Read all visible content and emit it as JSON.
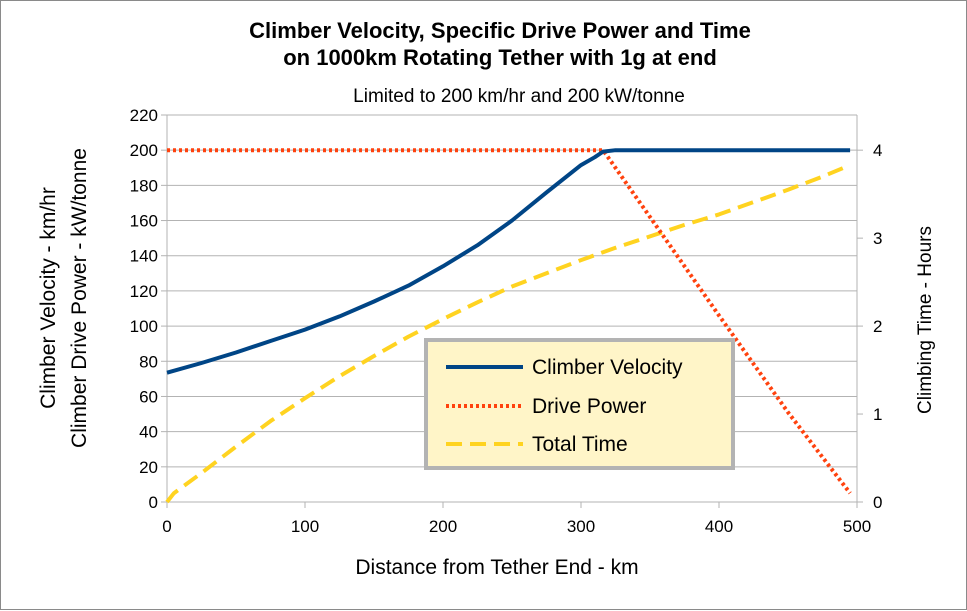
{
  "chart_data": {
    "type": "line",
    "title": [
      "Climber Velocity, Specific Drive Power and Time",
      "on 1000km Rotating Tether with 1g at end"
    ],
    "subtitle": "Limited to 200 km/hr and 200 kW/tonne",
    "xlabel": "Distance from Tether End - km",
    "ylabel": [
      "Climber Velocity - km/hr",
      "Climber Drive Power - kW/tonne"
    ],
    "y2label": "Climbing Time - Hours",
    "xlim": [
      0,
      500
    ],
    "ylim": [
      0,
      220
    ],
    "y2lim": [
      0,
      4.4
    ],
    "x_ticks": [
      "0",
      "100",
      "200",
      "300",
      "400",
      "500"
    ],
    "y_ticks": [
      "0",
      "20",
      "40",
      "60",
      "80",
      "100",
      "120",
      "140",
      "160",
      "180",
      "200",
      "220"
    ],
    "y2_ticks": [
      "0",
      "1",
      "2",
      "3",
      "4"
    ],
    "grid": "horizontal major gridlines",
    "legend_position": "center-right inside plot",
    "series": [
      {
        "name": "Climber Velocity",
        "axis": "left",
        "color": "#004586",
        "style": "solid",
        "x": [
          0,
          25,
          50,
          75,
          100,
          125,
          150,
          175,
          200,
          225,
          250,
          275,
          300,
          310,
          316,
          325,
          350,
          400,
          450,
          495
        ],
        "y": [
          73.5,
          79,
          85,
          91.5,
          98,
          105.5,
          114,
          123,
          134,
          146,
          160,
          176,
          191.5,
          196,
          199.2,
          200,
          200,
          200,
          200,
          200
        ]
      },
      {
        "name": "Drive Power",
        "axis": "left",
        "color": "#ff420e",
        "style": "dotted",
        "x": [
          0,
          50,
          100,
          150,
          200,
          250,
          300,
          316,
          350,
          400,
          450,
          495
        ],
        "y": [
          200,
          200,
          200,
          200,
          200,
          200,
          200,
          200,
          162,
          106,
          51,
          5
        ]
      },
      {
        "name": "Total Time",
        "axis": "right",
        "color": "#ffd320",
        "style": "dashed",
        "x": [
          0,
          5,
          25,
          50,
          75,
          100,
          125,
          150,
          175,
          200,
          225,
          250,
          275,
          300,
          325,
          350,
          375,
          400,
          425,
          450,
          475,
          495
        ],
        "y": [
          0,
          0.1,
          0.33,
          0.63,
          0.92,
          1.18,
          1.43,
          1.66,
          1.88,
          2.08,
          2.27,
          2.45,
          2.6,
          2.75,
          2.89,
          3.02,
          3.15,
          3.27,
          3.41,
          3.55,
          3.7,
          3.83
        ]
      }
    ]
  }
}
